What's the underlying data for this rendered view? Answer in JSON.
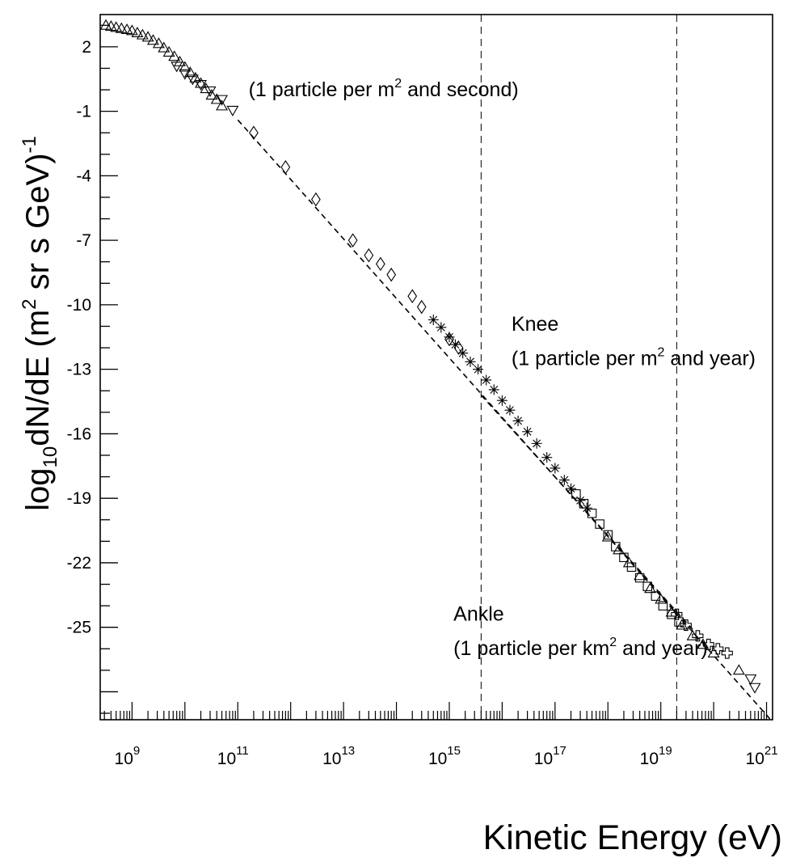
{
  "chart_data": {
    "type": "scatter",
    "title": "",
    "xlabel": "Kinetic Energy (eV)",
    "ylabel_parts": [
      "log",
      "10",
      "dN/dE  (m",
      "2",
      " sr s GeV)",
      "-1"
    ],
    "xscale": "log",
    "xlim": [
      250000000.0,
      1.3e+21
    ],
    "ylim": [
      -29.3,
      3.5
    ],
    "x_tick_labels": [
      {
        "value": 1000000000.0,
        "base": "10",
        "exp": "9"
      },
      {
        "value": 100000000000.0,
        "base": "10",
        "exp": "11"
      },
      {
        "value": 10000000000000.0,
        "base": "10",
        "exp": "13"
      },
      {
        "value": 1000000000000000.0,
        "base": "10",
        "exp": "15"
      },
      {
        "value": 1e+17,
        "base": "10",
        "exp": "17"
      },
      {
        "value": 1e+19,
        "base": "10",
        "exp": "19"
      },
      {
        "value": 1e+21,
        "base": "10",
        "exp": "21"
      }
    ],
    "y_tick_labels": [
      {
        "value": 2,
        "label": "2"
      },
      {
        "value": -1,
        "label": "-1"
      },
      {
        "value": -4,
        "label": "-4"
      },
      {
        "value": -7,
        "label": "-7"
      },
      {
        "value": -10,
        "label": "-10"
      },
      {
        "value": -13,
        "label": "-13"
      },
      {
        "value": -16,
        "label": "-16"
      },
      {
        "value": -19,
        "label": "-19"
      },
      {
        "value": -22,
        "label": "-22"
      },
      {
        "value": -25,
        "label": "-25"
      }
    ],
    "grid": false,
    "reference_lines": [
      {
        "orientation": "vertical",
        "x": 4000000000000000.0,
        "style": "dashed"
      },
      {
        "orientation": "vertical",
        "x": 2e+19,
        "style": "dashed"
      }
    ],
    "fit_lines": [
      {
        "style": "dashed",
        "x": [
          100000000000.0,
          1.2e+21
        ],
        "y": [
          -1.4,
          -29.3
        ]
      },
      {
        "style": "dashed",
        "x": [
          4000000000000000.0,
          4e+19
        ],
        "y": [
          -14.2,
          -25.1
        ]
      }
    ],
    "annotations": [
      {
        "text_before": "(1 particle per m",
        "sup": "2",
        "text_after": " and second)",
        "x": 160000000000.0,
        "y": -0.3
      },
      {
        "text_before": "Knee",
        "sup": "",
        "text_after": "",
        "x": 1.5e+16,
        "y": -11.2
      },
      {
        "text_before": "(1 particle per m",
        "sup": "2",
        "text_after": " and year)",
        "x": 1.5e+16,
        "y": -12.8
      },
      {
        "text_before": "Ankle",
        "sup": "",
        "text_after": "",
        "x": 1200000000000000.0,
        "y": -24.7
      },
      {
        "text_before": "(1 particle per km",
        "sup": "2",
        "text_after": " and year)",
        "x": 1200000000000000.0,
        "y": -26.3
      }
    ],
    "series": [
      {
        "marker": "triangle-up",
        "x": [
          320000000.0,
          400000000.0,
          500000000.0,
          630000000.0,
          800000000.0,
          1000000000.0,
          1260000000.0,
          1580000000.0,
          2000000000.0,
          2500000000.0,
          3200000000.0,
          4000000000.0,
          5000000000.0,
          6300000000.0,
          8000000000.0,
          10000000000.0,
          12600000000.0,
          15800000000.0,
          20000000000.0,
          25000000000.0,
          32000000000.0,
          40000000000.0,
          50000000000.0
        ],
        "y": [
          3.0,
          2.95,
          2.9,
          2.85,
          2.8,
          2.75,
          2.65,
          2.55,
          2.45,
          2.3,
          2.15,
          1.95,
          1.75,
          1.55,
          1.3,
          1.05,
          0.8,
          0.55,
          0.3,
          0.05,
          -0.25,
          -0.45,
          -0.75
        ]
      },
      {
        "marker": "triangle-down",
        "x": [
          7000000000.0,
          10000000000.0,
          14000000000.0,
          20000000000.0,
          30000000000.0,
          50000000000.0,
          80000000000.0,
          5e+20,
          6e+20
        ],
        "y": [
          1.1,
          0.75,
          0.5,
          0.25,
          -0.05,
          -0.45,
          -0.95,
          -27.4,
          -27.8
        ]
      },
      {
        "marker": "diamond",
        "x": [
          200000000000.0,
          800000000000.0,
          3000000000000.0,
          15000000000000.0,
          30000000000000.0,
          50000000000000.0,
          80000000000000.0,
          200000000000000.0,
          300000000000000.0,
          1000000000000000.0,
          1500000000000000.0
        ],
        "y": [
          -2.0,
          -3.6,
          -5.1,
          -7.0,
          -7.7,
          -8.1,
          -8.6,
          -9.6,
          -10.1,
          -11.6,
          -12.0
        ]
      },
      {
        "marker": "star",
        "x": [
          500000000000000.0,
          700000000000000.0,
          1000000000000000.0,
          1300000000000000.0,
          1800000000000000.0,
          2500000000000000.0,
          3500000000000000.0,
          5000000000000000.0,
          7000000000000000.0,
          1e+16,
          1.4e+16,
          2e+16,
          3e+16,
          4.5e+16,
          7e+16,
          1e+17,
          1.5e+17,
          2e+17,
          3e+17,
          4e+17
        ],
        "y": [
          -10.7,
          -11.05,
          -11.5,
          -11.85,
          -12.25,
          -12.65,
          -13.0,
          -13.5,
          -13.95,
          -14.45,
          -14.9,
          -15.4,
          -15.9,
          -16.45,
          -17.1,
          -17.6,
          -18.15,
          -18.55,
          -19.1,
          -19.45
        ]
      },
      {
        "marker": "open-square",
        "x": [
          2.5e+17,
          3.5e+17,
          5e+17,
          7e+17,
          1e+18,
          1.4e+18,
          2e+18,
          2.8e+18,
          4e+18,
          5.6e+18,
          8e+18,
          1.1e+19,
          1.6e+19,
          2.2e+19
        ],
        "y": [
          -18.8,
          -19.25,
          -19.7,
          -20.2,
          -20.7,
          -21.25,
          -21.75,
          -22.2,
          -22.7,
          -23.1,
          -23.55,
          -24.0,
          -24.4,
          -24.75
        ]
      },
      {
        "marker": "triangle-up",
        "x": [
          1e+18,
          1.6e+18,
          2.5e+18,
          4e+18,
          6.3e+18,
          1e+19,
          1.6e+19,
          2.5e+19,
          4e+19,
          6.3e+19,
          1e+20,
          3e+20
        ],
        "y": [
          -20.8,
          -21.4,
          -22.0,
          -22.6,
          -23.2,
          -23.7,
          -24.3,
          -24.9,
          -25.4,
          -25.8,
          -26.2,
          -27.0
        ]
      },
      {
        "marker": "open-cross",
        "x": [
          2e+19,
          3e+19,
          5e+19,
          8e+19,
          1.2e+20,
          1.8e+20
        ],
        "y": [
          -24.4,
          -24.9,
          -25.4,
          -25.8,
          -26.0,
          -26.2
        ]
      }
    ]
  }
}
